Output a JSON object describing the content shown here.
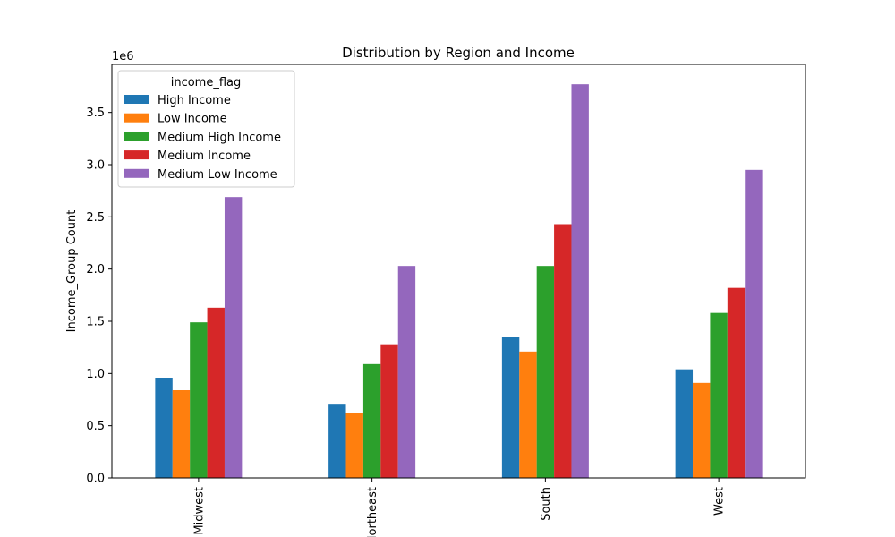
{
  "chart_data": {
    "type": "bar",
    "title": "Distribution by Region and Income",
    "xlabel": "",
    "ylabel": "Income_Group Count",
    "offset_label": "1e6",
    "categories": [
      "Midwest",
      "Northeast",
      "South",
      "West"
    ],
    "ylim": [
      0,
      3.96
    ],
    "yticks": [
      0.0,
      0.5,
      1.0,
      1.5,
      2.0,
      2.5,
      3.0,
      3.5
    ],
    "ytick_labels": [
      "0.0",
      "0.5",
      "1.0",
      "1.5",
      "2.0",
      "2.5",
      "3.0",
      "3.5"
    ],
    "legend": {
      "title": "income_flag",
      "placement": "top-left"
    },
    "grid": false,
    "series": [
      {
        "name": "High Income",
        "color": "#1f77b4",
        "values": [
          0.96,
          0.71,
          1.35,
          1.04
        ]
      },
      {
        "name": "Low Income",
        "color": "#ff7f0e",
        "values": [
          0.84,
          0.62,
          1.21,
          0.91
        ]
      },
      {
        "name": "Medium High Income",
        "color": "#2ca02c",
        "values": [
          1.49,
          1.09,
          2.03,
          1.58
        ]
      },
      {
        "name": "Medium Income",
        "color": "#d62728",
        "values": [
          1.63,
          1.28,
          2.43,
          1.82
        ]
      },
      {
        "name": "Medium Low Income",
        "color": "#9467bd",
        "values": [
          2.69,
          2.03,
          3.77,
          2.95
        ]
      }
    ]
  }
}
